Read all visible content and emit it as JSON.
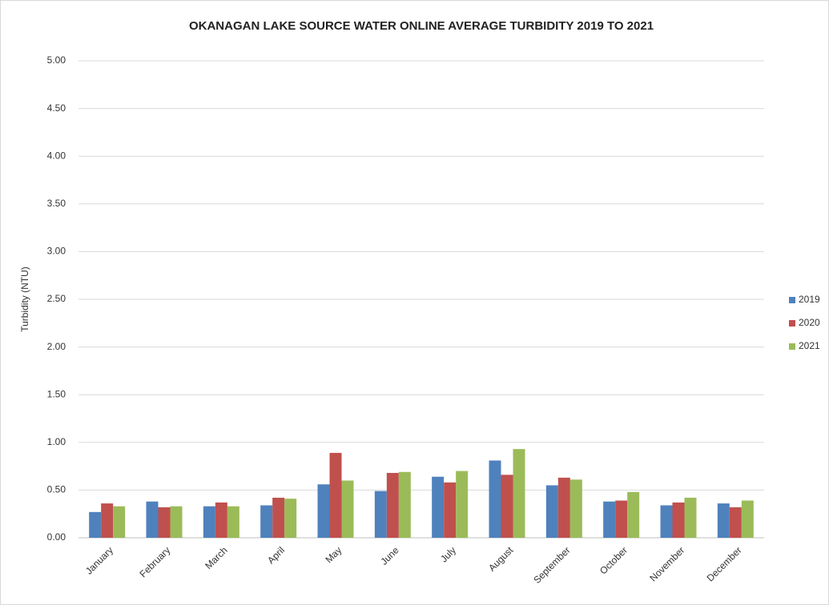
{
  "chart_data": {
    "type": "bar",
    "title": "OKANAGAN LAKE SOURCE WATER ONLINE AVERAGE TURBIDITY 2019 TO 2021",
    "y_label": "Turbidity (NTU)",
    "categories": [
      "January",
      "February",
      "March",
      "April",
      "May",
      "June",
      "July",
      "August",
      "September",
      "October",
      "November",
      "December"
    ],
    "series": [
      {
        "name": "2019",
        "color": "#4f81bd",
        "values": [
          0.27,
          0.38,
          0.33,
          0.34,
          0.56,
          0.49,
          0.64,
          0.81,
          0.55,
          0.38,
          0.34,
          0.36
        ]
      },
      {
        "name": "2020",
        "color": "#c0504d",
        "values": [
          0.36,
          0.32,
          0.37,
          0.42,
          0.89,
          0.68,
          0.58,
          0.66,
          0.63,
          0.39,
          0.37,
          0.32
        ]
      },
      {
        "name": "2021",
        "color": "#9bbb59",
        "values": [
          0.33,
          0.33,
          0.33,
          0.41,
          0.6,
          0.69,
          0.7,
          0.93,
          0.61,
          0.48,
          0.42,
          0.39
        ]
      }
    ],
    "ylim": [
      0,
      5
    ],
    "yticks": [
      {
        "value": 0,
        "label": "0.00"
      },
      {
        "value": 0.5,
        "label": "0.50"
      },
      {
        "value": 1,
        "label": "1.00"
      },
      {
        "value": 1.5,
        "label": "1.50"
      },
      {
        "value": 2,
        "label": "2.00"
      },
      {
        "value": 2.5,
        "label": "2.50"
      },
      {
        "value": 3,
        "label": "3.00"
      },
      {
        "value": 3.5,
        "label": "3.50"
      },
      {
        "value": 4,
        "label": "4.00"
      },
      {
        "value": 4.5,
        "label": "4.50"
      },
      {
        "value": 5,
        "label": "5.00"
      }
    ],
    "grid": true,
    "legend": "right"
  }
}
